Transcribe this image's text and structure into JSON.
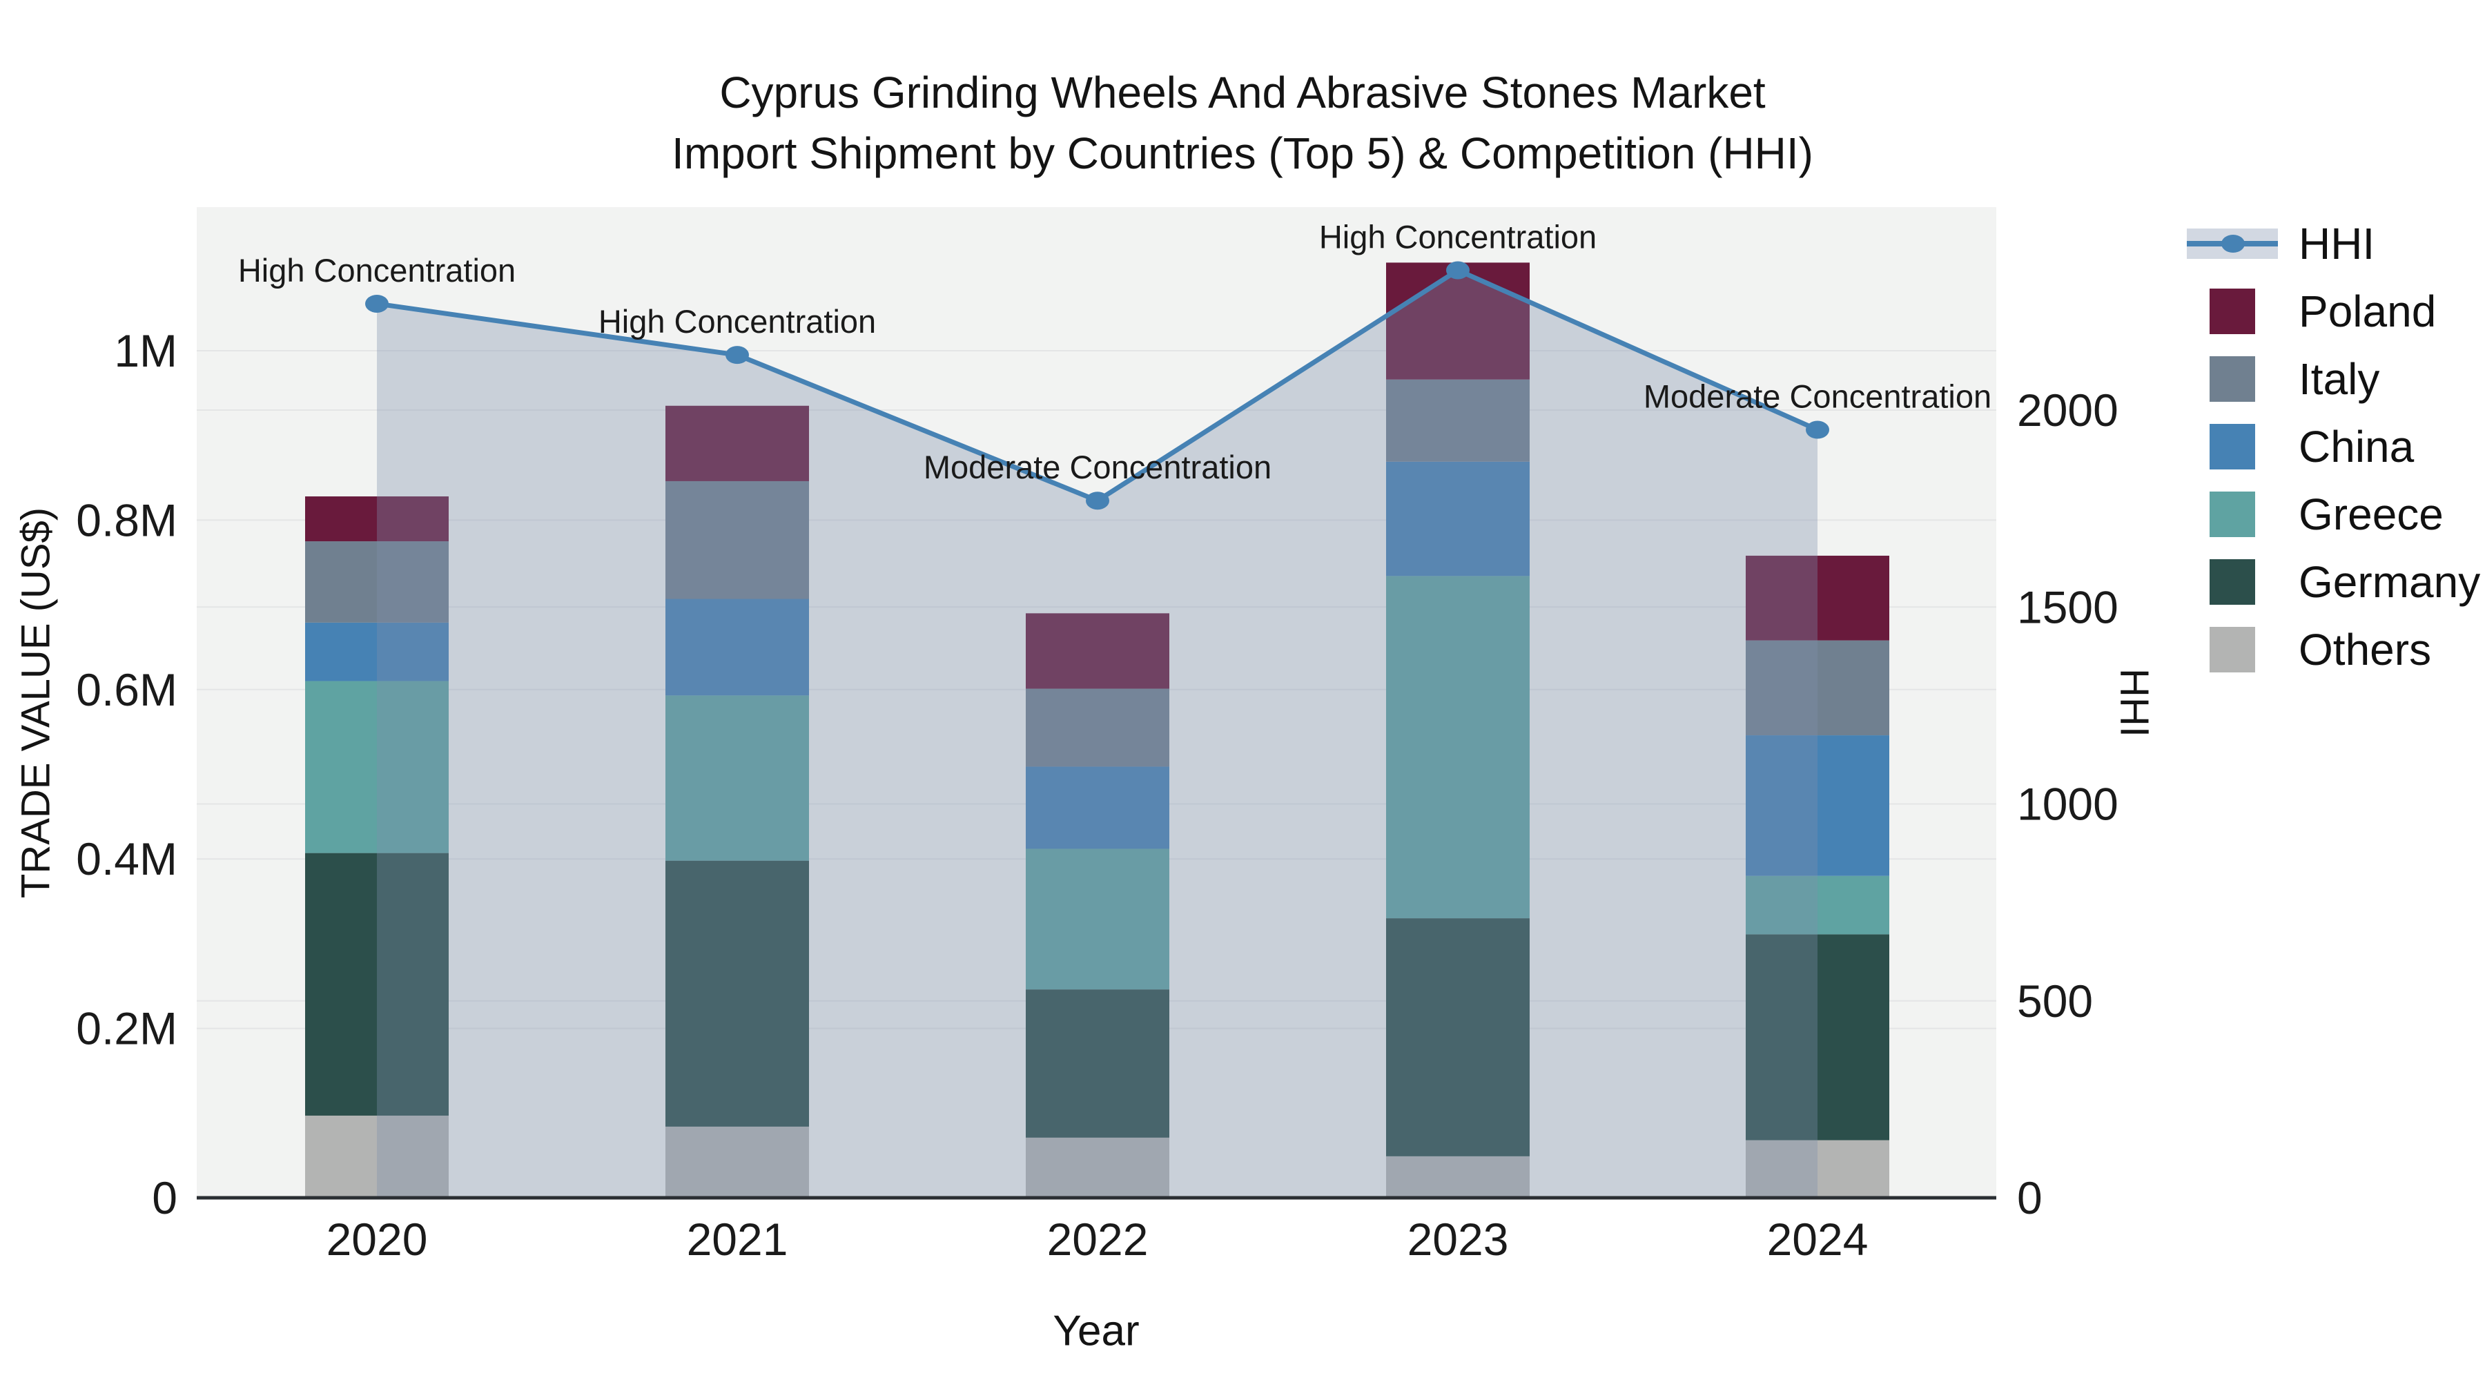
{
  "title": {
    "line1": "Cyprus Grinding Wheels And Abrasive Stones Market",
    "line2": "Import Shipment by Countries (Top 5) & Competition (HHI)"
  },
  "axes": {
    "x": {
      "title": "Year",
      "tick_labels": [
        "2020",
        "2021",
        "2022",
        "2023",
        "2024"
      ]
    },
    "y_left": {
      "title": "TRADE VALUE (US$)",
      "tick_labels": [
        "0",
        "0.2M",
        "0.4M",
        "0.6M",
        "0.8M",
        "1M"
      ],
      "tick_values": [
        0,
        200000,
        400000,
        600000,
        800000,
        1000000
      ],
      "range": [
        0,
        1170000
      ]
    },
    "y_right": {
      "title": "HHI",
      "tick_labels": [
        "0",
        "500",
        "1000",
        "1500",
        "2000"
      ],
      "tick_values": [
        0,
        500,
        1000,
        1500,
        2000
      ],
      "range": [
        0,
        2515
      ]
    }
  },
  "legend": {
    "position": "right",
    "items": [
      {
        "label": "HHI",
        "type": "line",
        "color": "#4682B4"
      },
      {
        "label": "Poland",
        "type": "swatch",
        "color": "#691A3C"
      },
      {
        "label": "Italy",
        "type": "swatch",
        "color": "#708090"
      },
      {
        "label": "China",
        "type": "swatch",
        "color": "#4682B4"
      },
      {
        "label": "Greece",
        "type": "swatch",
        "color": "#5FA3A2"
      },
      {
        "label": "Germany",
        "type": "swatch",
        "color": "#2C4F4B"
      },
      {
        "label": "Others",
        "type": "swatch",
        "color": "#B3B4B3"
      }
    ]
  },
  "chart_data": {
    "type": "stacked-bar + line overlay",
    "categories": [
      "2020",
      "2021",
      "2022",
      "2023",
      "2024"
    ],
    "unit": "US$",
    "stack_order_bottom_to_top": [
      "Others",
      "Germany",
      "Greece",
      "China",
      "Italy",
      "Poland"
    ],
    "series": [
      {
        "name": "Others",
        "color": "#B3B4B3",
        "values": [
          97000,
          84000,
          71000,
          49000,
          68000
        ]
      },
      {
        "name": "Germany",
        "color": "#2C4F4B",
        "values": [
          310000,
          314000,
          175000,
          281000,
          243000
        ]
      },
      {
        "name": "Greece",
        "color": "#5FA3A2",
        "values": [
          203000,
          195000,
          166000,
          404000,
          69000
        ]
      },
      {
        "name": "China",
        "color": "#4682B4",
        "values": [
          69000,
          114000,
          97000,
          135000,
          166000
        ]
      },
      {
        "name": "Italy",
        "color": "#708090",
        "values": [
          96000,
          139000,
          92000,
          97000,
          112000
        ]
      },
      {
        "name": "Poland",
        "color": "#691A3C",
        "values": [
          53000,
          89000,
          89000,
          138000,
          100000
        ]
      }
    ],
    "totals": [
      828000,
      935000,
      690000,
      1104000,
      758000
    ],
    "line_series": {
      "name": "HHI",
      "axis": "right",
      "color": "#4682B4",
      "fill_under_color": "rgba(127,143,172,0.35)",
      "values": [
        2270,
        2140,
        1770,
        2355,
        1950
      ]
    },
    "annotations": [
      {
        "category": "2020",
        "text": "High Concentration"
      },
      {
        "category": "2021",
        "text": "High Concentration"
      },
      {
        "category": "2022",
        "text": "Moderate Concentration"
      },
      {
        "category": "2023",
        "text": "High Concentration"
      },
      {
        "category": "2024",
        "text": "Moderate Concentration"
      }
    ],
    "grid": true,
    "legend_position": "right",
    "plot_bg": "#F2F3F2"
  },
  "colors": {
    "page_bg": "#FFFFFF",
    "plot_bg": "#F2F3F2",
    "grid": "#E4E5E6",
    "axis_line": "#2B2F33",
    "text": "#1A1A1A"
  }
}
